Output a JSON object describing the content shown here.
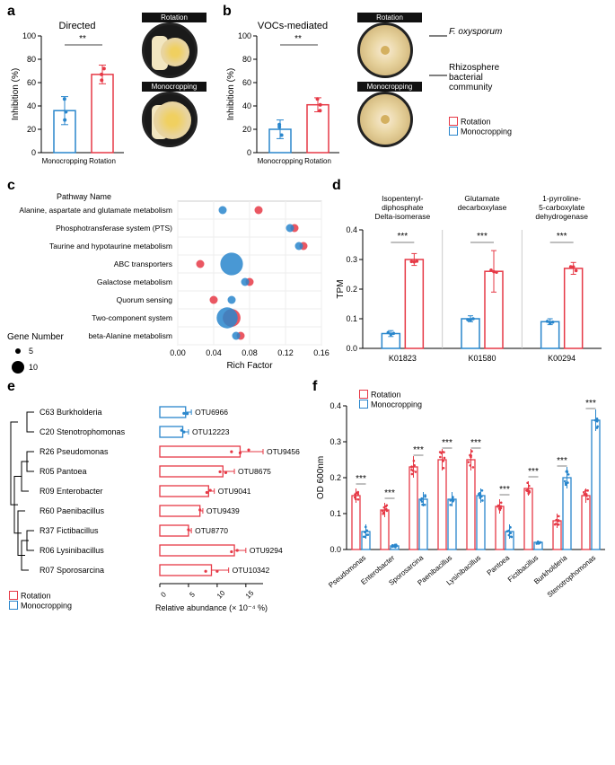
{
  "colors": {
    "rotation": "#e63946",
    "monocropping": "#2986cc",
    "black": "#000000"
  },
  "panel_a": {
    "label": "a",
    "title": "Directed",
    "ylabel": "Inhibition (%)",
    "ylim": [
      0,
      100
    ],
    "ytick_step": 20,
    "categories": [
      "Monocropping",
      "Rotation"
    ],
    "means": [
      36,
      67
    ],
    "errs": [
      12,
      8
    ],
    "colors": [
      "#2986cc",
      "#e63946"
    ],
    "points": [
      [
        35,
        28,
        46
      ],
      [
        72,
        67,
        62
      ]
    ],
    "sig": "**",
    "petri_top": "Rotation",
    "petri_bottom": "Monocropping"
  },
  "panel_b": {
    "label": "b",
    "title": "VOCs-mediated",
    "ylabel": "Inhibition (%)",
    "ylim": [
      0,
      100
    ],
    "ytick_step": 20,
    "categories": [
      "Monocropping",
      "Rotation"
    ],
    "means": [
      20,
      41
    ],
    "errs": [
      8,
      6
    ],
    "colors": [
      "#2986cc",
      "#e63946"
    ],
    "points": [
      [
        15,
        22,
        24
      ],
      [
        46,
        36,
        41
      ]
    ],
    "sig": "**",
    "petri_top": "Rotation",
    "petri_bottom": "Monocropping",
    "annot1": "F. oxysporum",
    "annot2": "Rhizosphere\nbacterial\ncommunity",
    "legend": [
      "Rotation",
      "Monocropping"
    ]
  },
  "panel_c": {
    "label": "c",
    "xlabel": "Rich Factor",
    "ylabel": "Pathway Name",
    "legend_title": "Gene Number",
    "legend_sizes": [
      5,
      10
    ],
    "xlim": [
      0,
      0.16
    ],
    "xtick_step": 0.04,
    "pathways": [
      "Alanine, aspartate and glutamate metabolism",
      "Phosphotransferase system (PTS)",
      "Taurine and hypotaurine metabolism",
      "ABC transporters",
      "Galactose metabolism",
      "Quorum sensing",
      "Two-component system",
      "beta-Alanine metabolism"
    ],
    "points": [
      {
        "y": 0,
        "x": 0.09,
        "size": 5,
        "color": "#e63946"
      },
      {
        "y": 0,
        "x": 0.05,
        "size": 5,
        "color": "#2986cc"
      },
      {
        "y": 1,
        "x": 0.13,
        "size": 5,
        "color": "#e63946"
      },
      {
        "y": 1,
        "x": 0.125,
        "size": 5,
        "color": "#2986cc"
      },
      {
        "y": 2,
        "x": 0.14,
        "size": 5,
        "color": "#e63946"
      },
      {
        "y": 2,
        "x": 0.135,
        "size": 5,
        "color": "#2986cc"
      },
      {
        "y": 3,
        "x": 0.025,
        "size": 5,
        "color": "#e63946"
      },
      {
        "y": 3,
        "x": 0.06,
        "size": 14,
        "color": "#2986cc"
      },
      {
        "y": 4,
        "x": 0.08,
        "size": 5,
        "color": "#e63946"
      },
      {
        "y": 4,
        "x": 0.075,
        "size": 5,
        "color": "#2986cc"
      },
      {
        "y": 5,
        "x": 0.04,
        "size": 5,
        "color": "#e63946"
      },
      {
        "y": 5,
        "x": 0.06,
        "size": 5,
        "color": "#2986cc"
      },
      {
        "y": 6,
        "x": 0.06,
        "size": 11,
        "color": "#e63946"
      },
      {
        "y": 6,
        "x": 0.055,
        "size": 13,
        "color": "#2986cc"
      },
      {
        "y": 7,
        "x": 0.07,
        "size": 5,
        "color": "#e63946"
      },
      {
        "y": 7,
        "x": 0.065,
        "size": 5,
        "color": "#2986cc"
      }
    ]
  },
  "panel_d": {
    "label": "d",
    "ylabel": "TPM",
    "ylim": [
      0,
      0.4
    ],
    "ytick_step": 0.1,
    "facets": [
      "Isopentenyl-\ndiphosphate\nDelta-isomerase",
      "Glutamate\ndecarboxylase",
      "1-pyrroline-\n5-carboxylate\ndehydrogenase"
    ],
    "categories": [
      "K01823",
      "K01580",
      "K00294"
    ],
    "mono_means": [
      0.05,
      0.1,
      0.09
    ],
    "rot_means": [
      0.3,
      0.26,
      0.27
    ],
    "mono_errs": [
      0.01,
      0.01,
      0.01
    ],
    "rot_errs": [
      0.02,
      0.07,
      0.02
    ],
    "sig": "***"
  },
  "panel_e": {
    "label": "e",
    "tree": [
      {
        "name": "C63 Burkholderia",
        "otu": "OTU6966",
        "group": "mono",
        "val": 4.5,
        "err": 1,
        "pts": [
          4.2,
          4.8
        ]
      },
      {
        "name": "C20 Stenotrophomonas",
        "otu": "OTU12223",
        "group": "mono",
        "val": 4.0,
        "err": 1,
        "pts": [
          3.8,
          4.2
        ]
      },
      {
        "name": "R26 Pseudomonas",
        "otu": "OTU9456",
        "group": "rot",
        "val": 14,
        "err": 4,
        "pts": [
          12.5,
          15.5,
          14
        ]
      },
      {
        "name": "R05 Pantoea",
        "otu": "OTU8675",
        "group": "rot",
        "val": 11,
        "err": 2,
        "pts": [
          10.5,
          11.5
        ]
      },
      {
        "name": "R09 Enterobacter",
        "otu": "OTU9041",
        "group": "rot",
        "val": 8.5,
        "err": 1,
        "pts": [
          8.2,
          8.8
        ]
      },
      {
        "name": "R60 Paenibacillus",
        "otu": "OTU9439",
        "group": "rot",
        "val": 7,
        "err": 0.5,
        "pts": [
          7
        ]
      },
      {
        "name": "R37 Fictibacillus",
        "otu": "OTU8770",
        "group": "rot",
        "val": 5,
        "err": 0.5,
        "pts": [
          5
        ]
      },
      {
        "name": "R06 Lysinibacillus",
        "otu": "OTU9294",
        "group": "rot",
        "val": 13,
        "err": 2,
        "pts": [
          12.5,
          13.5
        ]
      },
      {
        "name": "R07 Sporosarcina",
        "otu": "OTU10342",
        "group": "rot",
        "val": 9,
        "err": 3,
        "pts": [
          8,
          10
        ]
      }
    ],
    "xlabel": "Relative abundance (× 10⁻⁴ %)",
    "xlim": [
      0,
      18
    ],
    "xticks": [
      0,
      5,
      10,
      15
    ],
    "legend": [
      "Rotation",
      "Monocropping"
    ]
  },
  "panel_f": {
    "label": "f",
    "ylabel": "OD 600nm",
    "ylim": [
      0,
      0.4
    ],
    "ytick_step": 0.1,
    "categories": [
      "Pseudomonas",
      "Enterobacter",
      "Sporosarcina",
      "Paenibacillus",
      "Lysinibacillus",
      "Pantoea",
      "Fictibacillus",
      "Burkholderia",
      "Stenotrophomonas"
    ],
    "rot_means": [
      0.15,
      0.11,
      0.23,
      0.25,
      0.25,
      0.12,
      0.17,
      0.08,
      0.15
    ],
    "mono_means": [
      0.05,
      0.01,
      0.14,
      0.14,
      0.15,
      0.05,
      0.02,
      0.2,
      0.36
    ],
    "rot_errs": [
      0.02,
      0.02,
      0.03,
      0.03,
      0.03,
      0.02,
      0.02,
      0.02,
      0.02
    ],
    "mono_errs": [
      0.02,
      0.005,
      0.02,
      0.02,
      0.02,
      0.02,
      0.005,
      0.03,
      0.03
    ],
    "sig": "***",
    "legend": [
      "Rotation",
      "Monocropping"
    ]
  }
}
